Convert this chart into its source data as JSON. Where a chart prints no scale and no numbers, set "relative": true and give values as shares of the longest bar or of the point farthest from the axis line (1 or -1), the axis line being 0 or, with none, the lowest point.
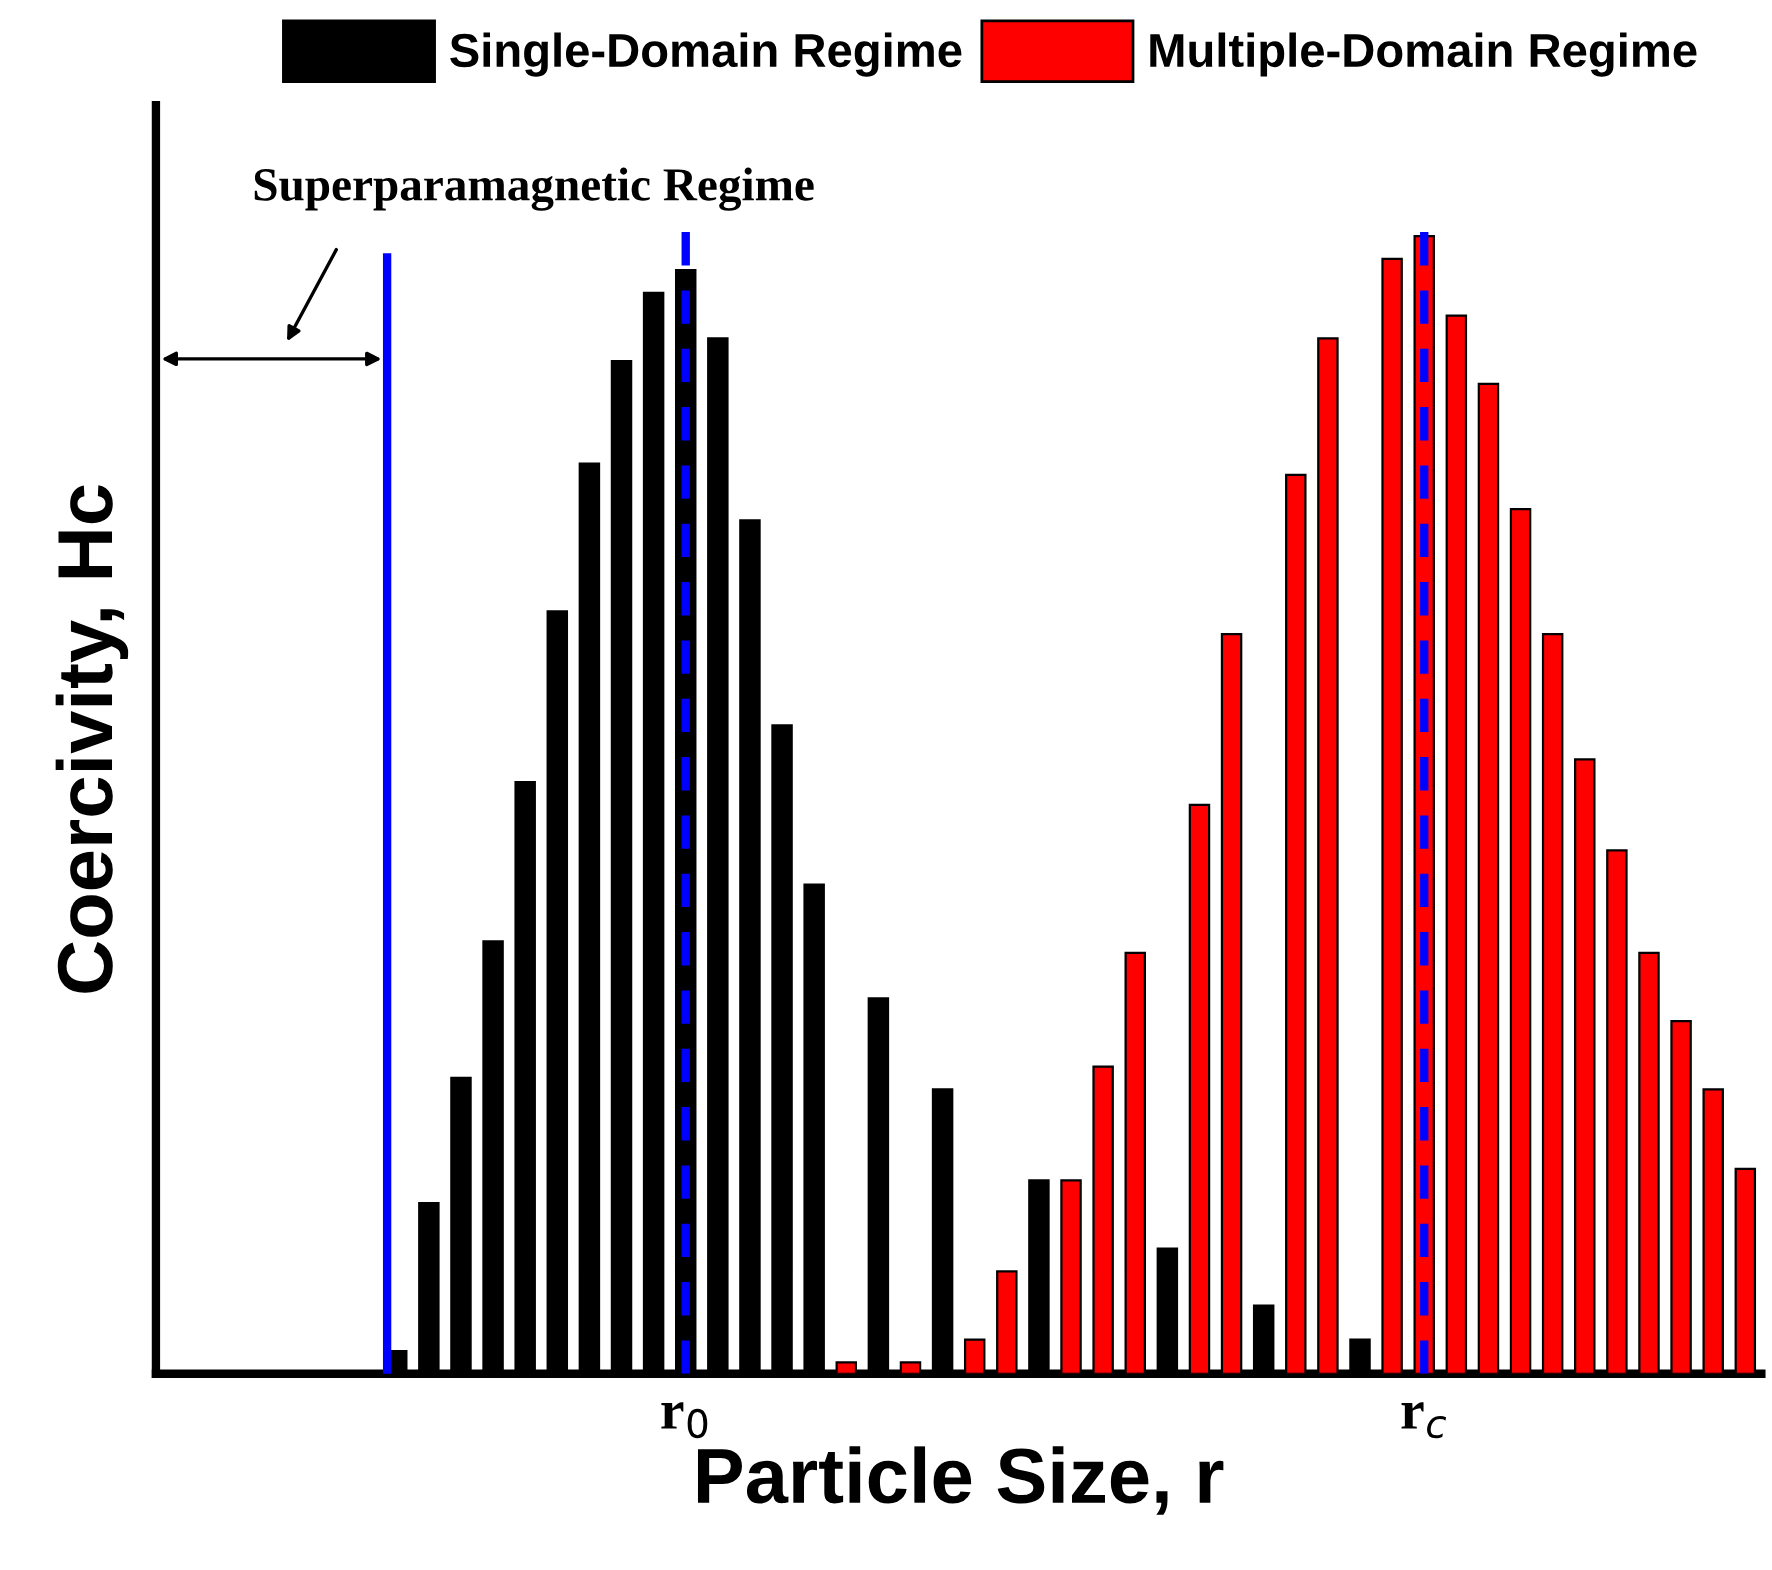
{
  "chart_data": {
    "type": "bar",
    "relative": true,
    "xlabel": "Particle Size, r",
    "ylabel": "Coercivity, Hc",
    "categories": [
      null,
      null,
      null,
      null,
      null,
      null,
      null,
      null,
      null,
      null,
      null,
      null,
      null,
      null,
      null,
      null,
      "r$_{0}$",
      null,
      null,
      null,
      null,
      null,
      null,
      null,
      null,
      null,
      null,
      null,
      null,
      null,
      null,
      null,
      null,
      null,
      null,
      null,
      null,
      null,
      null,
      "r$_{c}$",
      null,
      null,
      null,
      null,
      null,
      null,
      null,
      null,
      null,
      null
    ],
    "legend": "top",
    "series": [
      {
        "name": "Single-Domain Regime",
        "color": "#000000",
        "values": [
          null,
          null,
          null,
          null,
          null,
          null,
          null,
          0.02,
          0.15,
          0.26,
          0.38,
          0.52,
          0.67,
          0.8,
          0.89,
          0.95,
          0.97,
          0.91,
          0.75,
          0.57,
          0.43,
          null,
          0.33,
          null,
          0.25,
          null,
          null,
          0.17,
          null,
          null,
          null,
          0.11,
          null,
          null,
          0.06,
          null,
          null,
          0.03,
          null,
          null,
          null,
          null,
          null,
          null,
          null,
          null,
          null,
          null,
          null,
          null
        ]
      },
      {
        "name": "Multiple-Domain Regime",
        "color": "#ff0000",
        "values": [
          null,
          null,
          null,
          null,
          null,
          null,
          null,
          null,
          null,
          null,
          null,
          null,
          null,
          null,
          null,
          null,
          null,
          null,
          null,
          null,
          null,
          0.01,
          null,
          0.01,
          null,
          0.03,
          0.09,
          null,
          0.17,
          0.27,
          0.37,
          null,
          0.5,
          0.65,
          null,
          0.79,
          0.91,
          null,
          0.98,
          1.0,
          0.93,
          0.87,
          0.76,
          0.65,
          0.54,
          0.46,
          0.37,
          0.31,
          0.25,
          0.18
        ]
      }
    ],
    "tick_labels": "x",
    "ref_lines": [
      {
        "axis": "x",
        "value": "r$_{0}$",
        "color": "#0000ff",
        "line_style": "dashed"
      },
      {
        "axis": "x",
        "value": "r$_{c}$",
        "color": "#0000ff",
        "line_style": "dashed"
      }
    ],
    "annotations": [
      "Superparamagnetic Regime"
    ]
  }
}
